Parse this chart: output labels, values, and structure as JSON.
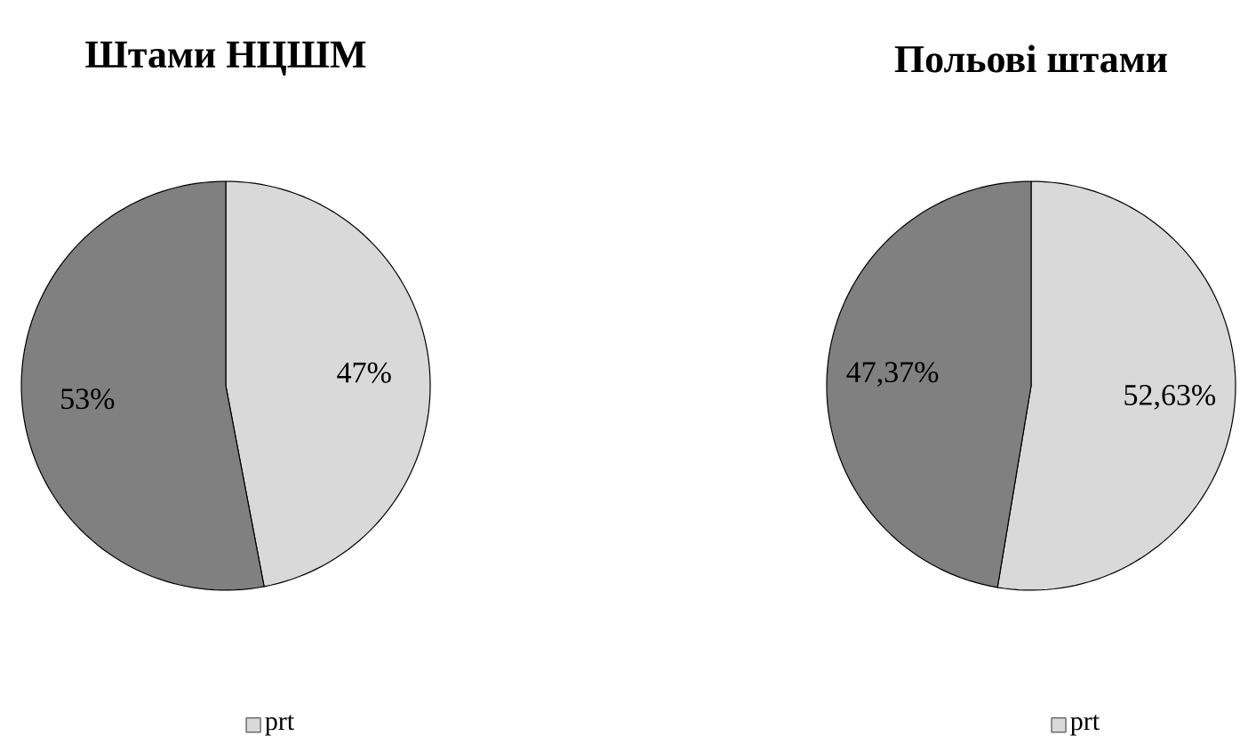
{
  "chart_data": [
    {
      "type": "pie",
      "title": "Штами НЦШМ",
      "categories": [
        "prt",
        null
      ],
      "values": [
        47,
        53
      ],
      "colors": [
        "#d9d9d9",
        "#808080"
      ],
      "value_labels": [
        "47%",
        "53%"
      ],
      "legend": "bottom"
    },
    {
      "type": "pie",
      "title": "Польові штами",
      "categories": [
        "prt",
        null
      ],
      "values": [
        52.63,
        47.37
      ],
      "colors": [
        "#d9d9d9",
        "#808080"
      ],
      "value_labels": [
        "52,63%",
        "47,37%"
      ],
      "legend": "bottom"
    }
  ]
}
